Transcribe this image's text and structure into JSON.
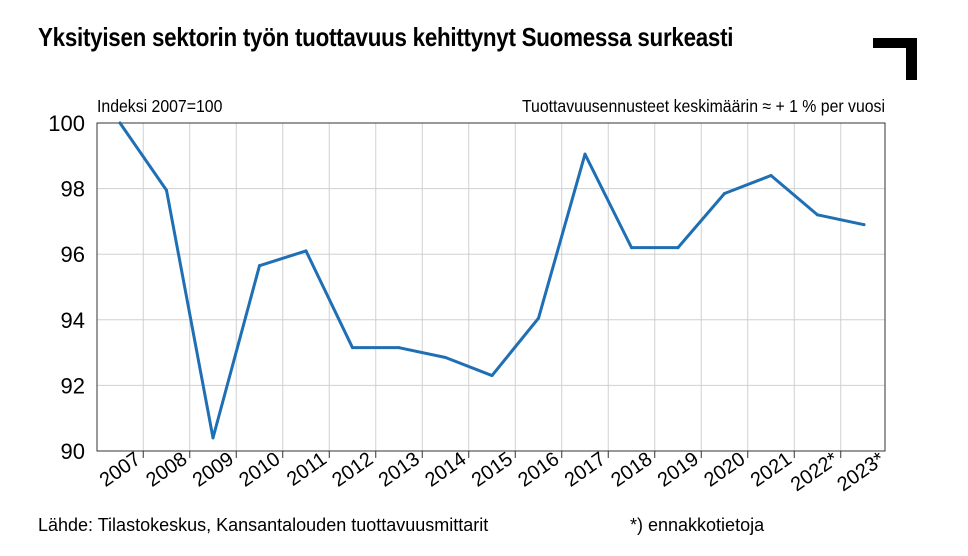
{
  "title": "Yksityisen sektorin työn tuottavuus kehittynyt Suomessa surkeasti",
  "source": "Lähde: Tilastokeskus, Kansantalouden tuottavuusmittarit",
  "footnote": "*) ennakkotietoja",
  "colors": {
    "line": "#1f6fb4",
    "grid": "#d0d0d0",
    "axis": "#333333"
  },
  "chart_data": {
    "type": "line",
    "title": "Yksityisen sektorin työn tuottavuus kehittynyt Suomessa surkeasti",
    "ylabel": "Indeksi 2007=100",
    "annotation": "Tuottavuusennusteet keskimäärin ≈ + 1 % per vuosi",
    "categories": [
      "2007",
      "2008",
      "2009",
      "2010",
      "2011",
      "2012",
      "2013",
      "2014",
      "2015",
      "2016",
      "2017",
      "2018",
      "2019",
      "2020",
      "2021",
      "2022*",
      "2023*"
    ],
    "series": [
      {
        "values": [
          100,
          97.95,
          90.4,
          95.65,
          96.1,
          93.15,
          93.15,
          92.85,
          92.3,
          94.05,
          99.05,
          96.2,
          96.2,
          97.85,
          98.4,
          97.2,
          96.9
        ]
      }
    ],
    "yticks": [
      90,
      92,
      94,
      96,
      98,
      100
    ],
    "ylim": [
      90,
      100
    ],
    "grid": true
  }
}
